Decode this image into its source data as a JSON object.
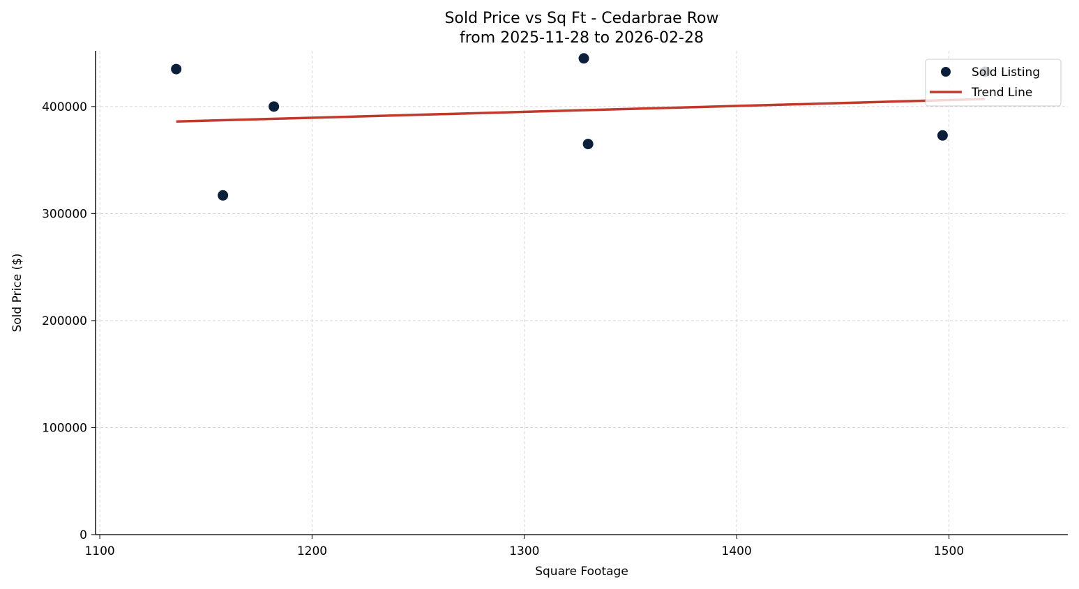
{
  "chart_data": {
    "type": "scatter",
    "title": "Sold Price vs Sq Ft - Cedarbrae Row",
    "subtitle": "from 2025-11-28 to 2026-02-28",
    "xlabel": "Square Footage",
    "ylabel": "Sold Price ($)",
    "xlim": [
      1098,
      1556
    ],
    "ylim": [
      0,
      452000
    ],
    "x_ticks": [
      1100,
      1200,
      1300,
      1400,
      1500
    ],
    "y_ticks": [
      0,
      100000,
      200000,
      300000,
      400000
    ],
    "x_tick_labels": [
      "1100",
      "1200",
      "1300",
      "1400",
      "1500"
    ],
    "y_tick_labels": [
      "0",
      "100000",
      "200000",
      "300000",
      "400000"
    ],
    "grid": true,
    "legend_position": "upper right",
    "series": [
      {
        "name": "Sold Listing",
        "kind": "scatter",
        "color": "#0b1f3a",
        "points": [
          {
            "x": 1136,
            "y": 435000
          },
          {
            "x": 1158,
            "y": 317000
          },
          {
            "x": 1182,
            "y": 400000
          },
          {
            "x": 1328,
            "y": 445000
          },
          {
            "x": 1330,
            "y": 365000
          },
          {
            "x": 1497,
            "y": 373000
          },
          {
            "x": 1517,
            "y": 432500
          }
        ]
      },
      {
        "name": "Trend Line",
        "kind": "line",
        "color": "#c0392b",
        "points": [
          {
            "x": 1136,
            "y": 386000
          },
          {
            "x": 1517,
            "y": 407000
          }
        ]
      }
    ]
  },
  "legend": {
    "items": [
      {
        "label": "Sold Listing",
        "marker": "circle",
        "color": "#0b1f3a"
      },
      {
        "label": "Trend Line",
        "marker": "line",
        "color": "#c0392b"
      }
    ]
  }
}
